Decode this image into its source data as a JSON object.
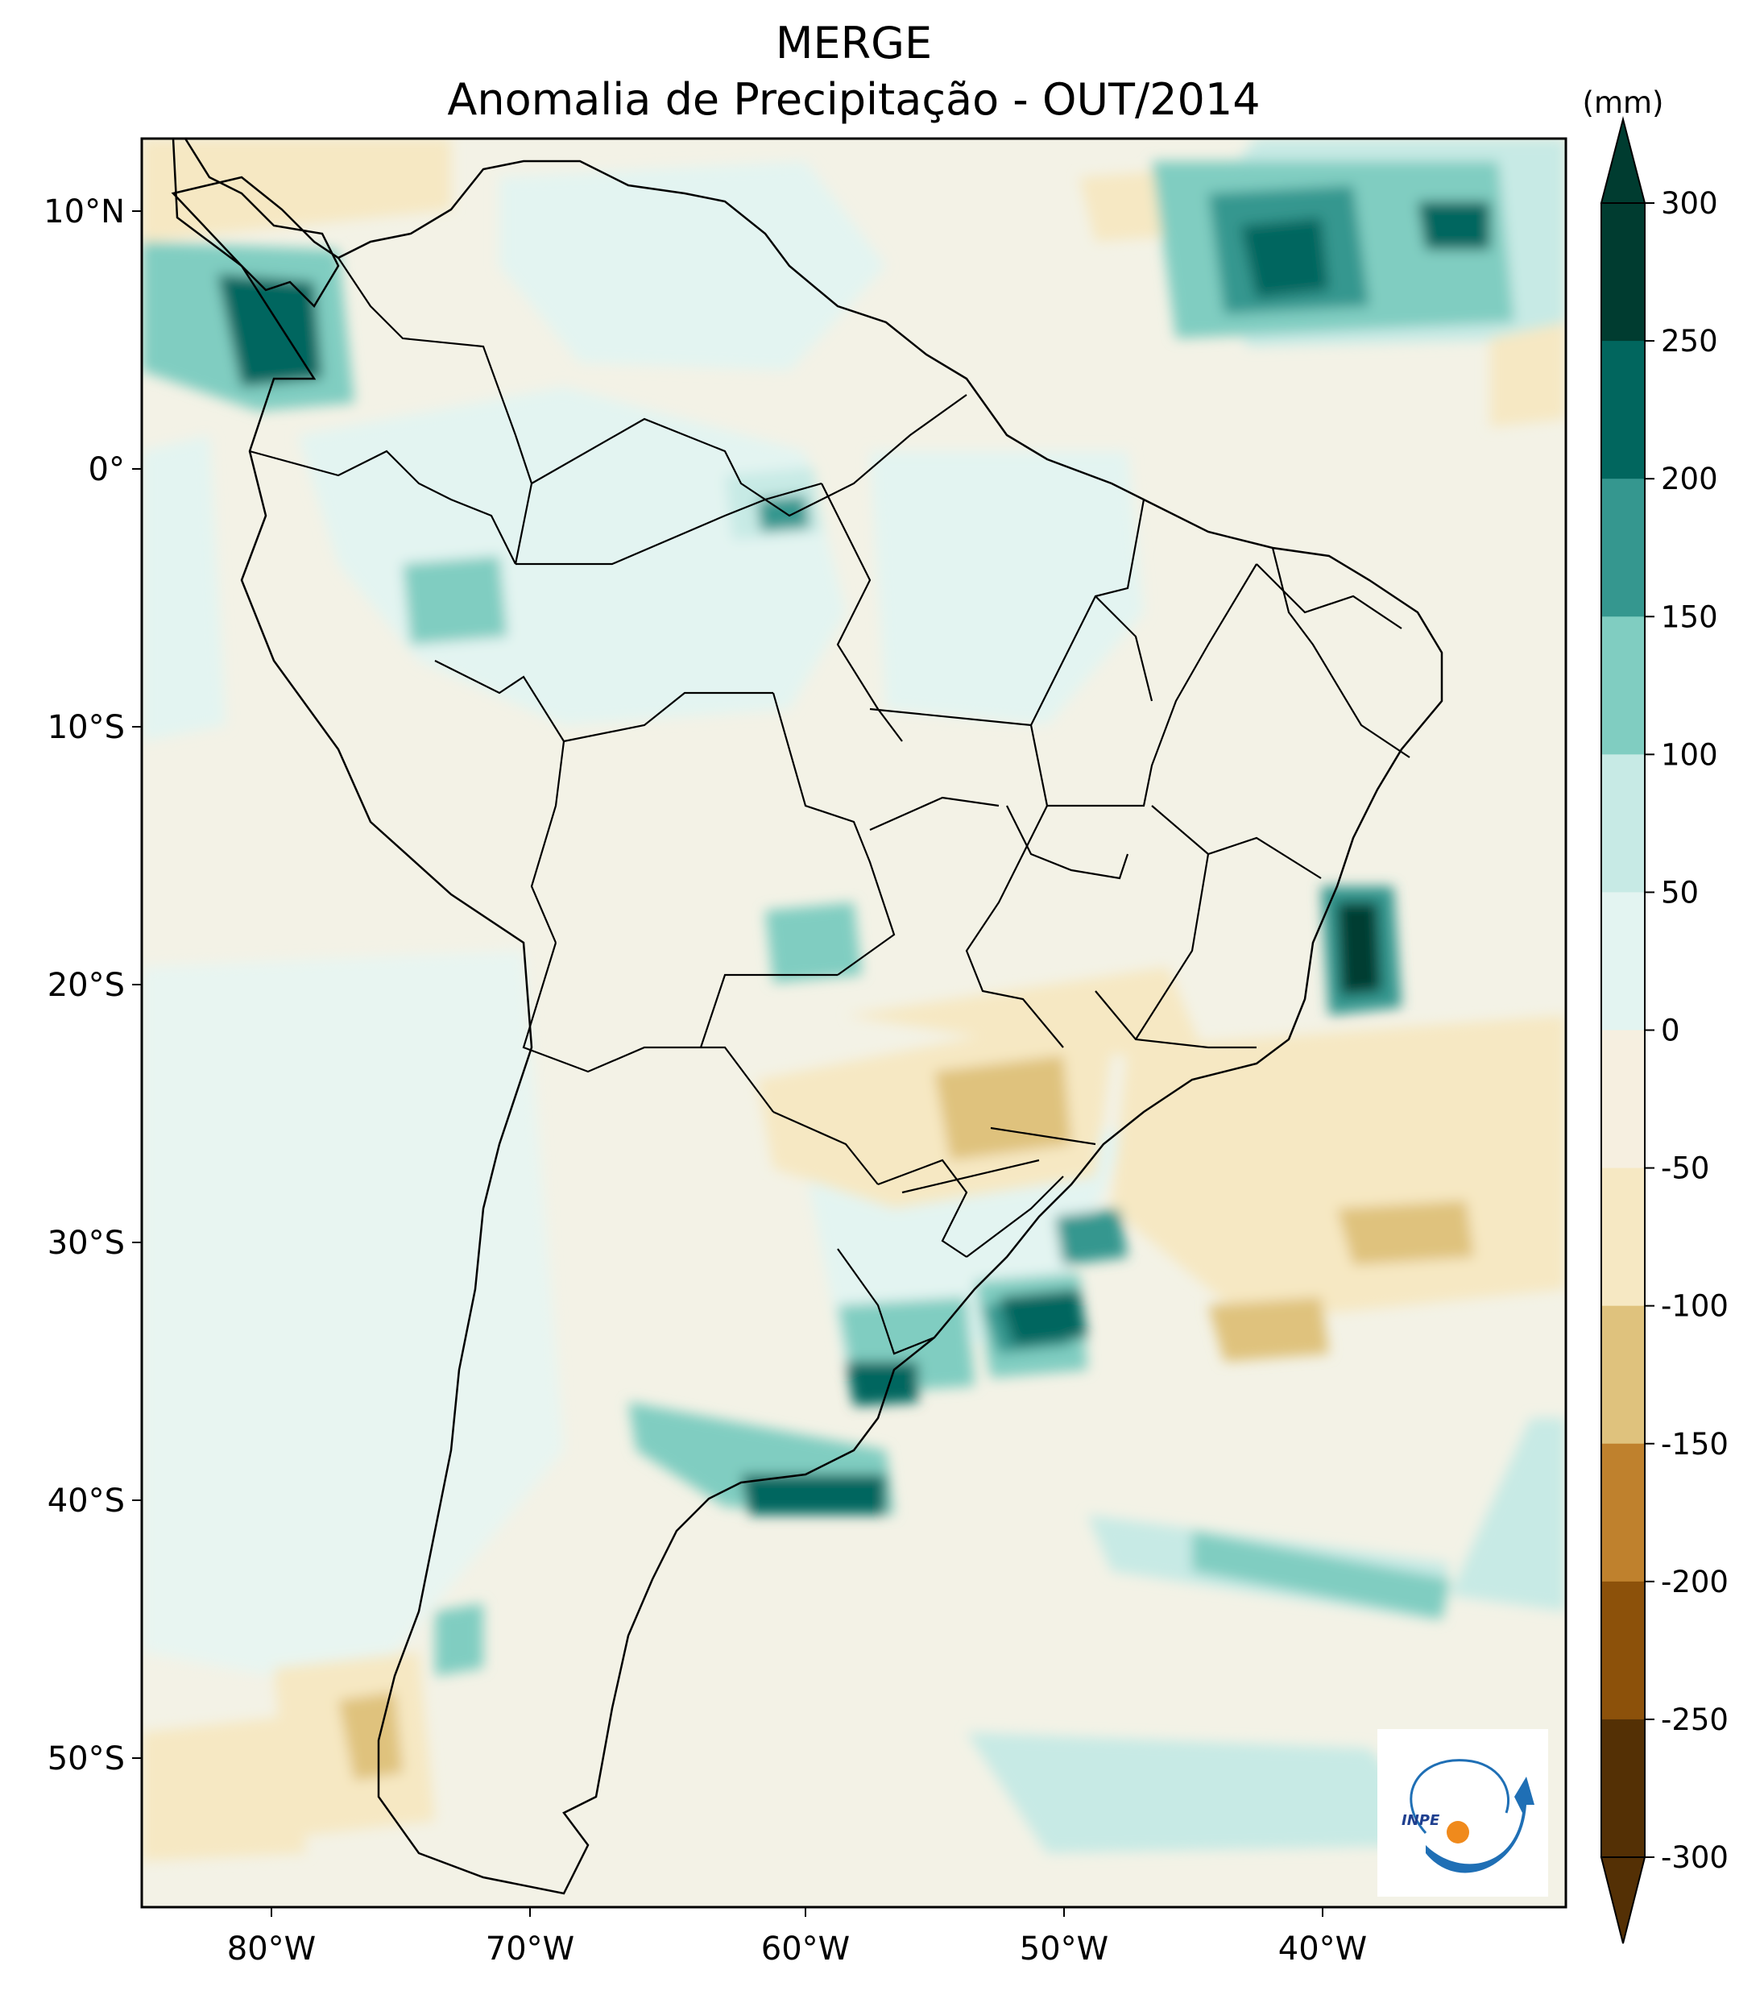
{
  "title": {
    "line1": "MERGE",
    "line2": "Anomalia de Precipitação - OUT/2014"
  },
  "axes": {
    "lat_labels": [
      "10°N",
      "0°",
      "10°S",
      "20°S",
      "30°S",
      "40°S",
      "50°S"
    ],
    "lat_values": [
      10,
      0,
      -10,
      -20,
      -30,
      -40,
      -50
    ],
    "lon_labels": [
      "80°W",
      "70°W",
      "60°W",
      "50°W",
      "40°W"
    ],
    "lon_values": [
      -80,
      -70,
      -60,
      -50,
      -40
    ],
    "lon_range": [
      -85,
      -30
    ],
    "lat_range": [
      -56,
      13
    ]
  },
  "colorbar": {
    "unit": "(mm)",
    "ticks": [
      "300",
      "250",
      "200",
      "150",
      "100",
      "50",
      "0",
      "-50",
      "-100",
      "-150",
      "-200",
      "-250",
      "-300"
    ],
    "colors": [
      "#003c30",
      "#01665e",
      "#35978f",
      "#80cdc1",
      "#c7eae5",
      "#e3f4f1",
      "#f6efe0",
      "#f6e8c3",
      "#dfc27d",
      "#bf812d",
      "#8c510a",
      "#543005"
    ]
  },
  "logo": {
    "text": "INPE"
  },
  "colors": {
    "coast": "#000000",
    "ocean_base": "#eef3ea"
  }
}
